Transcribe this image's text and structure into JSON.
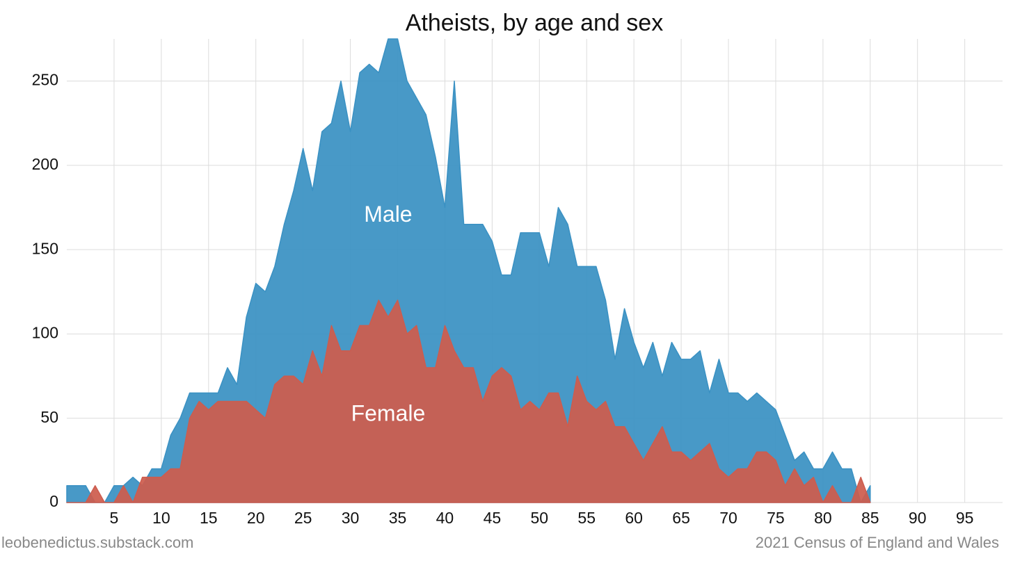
{
  "chart_data": {
    "type": "area",
    "title": "Atheists, by age and sex",
    "xlabel": "",
    "ylabel": "",
    "xlim": [
      0,
      99
    ],
    "ylim": [
      0,
      275
    ],
    "x_ticks": [
      5,
      10,
      15,
      20,
      25,
      30,
      35,
      40,
      45,
      50,
      55,
      60,
      65,
      70,
      75,
      80,
      85,
      90,
      95
    ],
    "y_ticks": [
      0,
      50,
      100,
      150,
      200,
      250
    ],
    "grid": true,
    "series": [
      {
        "name": "Male",
        "label": "Male",
        "color": "#3a91c3",
        "label_at": [
          34,
          170
        ],
        "x": [
          0,
          1,
          2,
          3,
          4,
          5,
          6,
          7,
          8,
          9,
          10,
          11,
          12,
          13,
          14,
          15,
          16,
          17,
          18,
          19,
          20,
          21,
          22,
          23,
          24,
          25,
          26,
          27,
          28,
          29,
          30,
          31,
          32,
          33,
          34,
          35,
          36,
          37,
          38,
          39,
          40,
          41,
          42,
          43,
          44,
          45,
          46,
          47,
          48,
          49,
          50,
          51,
          52,
          53,
          54,
          55,
          56,
          57,
          58,
          59,
          60,
          61,
          62,
          63,
          64,
          65,
          66,
          67,
          68,
          69,
          70,
          71,
          72,
          73,
          74,
          75,
          76,
          77,
          78,
          79,
          80,
          81,
          82,
          83,
          84,
          85
        ],
        "values": [
          10,
          10,
          10,
          0,
          0,
          10,
          10,
          15,
          10,
          20,
          20,
          40,
          50,
          65,
          65,
          65,
          65,
          80,
          70,
          110,
          130,
          125,
          140,
          165,
          185,
          210,
          185,
          220,
          225,
          250,
          220,
          255,
          260,
          255,
          275,
          275,
          250,
          240,
          230,
          205,
          175,
          250,
          165,
          165,
          165,
          155,
          135,
          135,
          160,
          160,
          160,
          140,
          175,
          165,
          140,
          140,
          140,
          120,
          85,
          115,
          95,
          80,
          95,
          75,
          95,
          85,
          85,
          90,
          65,
          85,
          65,
          65,
          60,
          65,
          60,
          55,
          40,
          25,
          30,
          20,
          20,
          30,
          20,
          20,
          0,
          10
        ]
      },
      {
        "name": "Female",
        "label": "Female",
        "color": "#cd5c4e",
        "label_at": [
          34,
          52
        ],
        "x": [
          0,
          1,
          2,
          3,
          4,
          5,
          6,
          7,
          8,
          9,
          10,
          11,
          12,
          13,
          14,
          15,
          16,
          17,
          18,
          19,
          20,
          21,
          22,
          23,
          24,
          25,
          26,
          27,
          28,
          29,
          30,
          31,
          32,
          33,
          34,
          35,
          36,
          37,
          38,
          39,
          40,
          41,
          42,
          43,
          44,
          45,
          46,
          47,
          48,
          49,
          50,
          51,
          52,
          53,
          54,
          55,
          56,
          57,
          58,
          59,
          60,
          61,
          62,
          63,
          64,
          65,
          66,
          67,
          68,
          69,
          70,
          71,
          72,
          73,
          74,
          75,
          76,
          77,
          78,
          79,
          80,
          81,
          82,
          83,
          84,
          85
        ],
        "values": [
          0,
          0,
          0,
          10,
          0,
          0,
          10,
          0,
          15,
          15,
          15,
          20,
          20,
          50,
          60,
          55,
          60,
          60,
          60,
          60,
          55,
          50,
          70,
          75,
          75,
          70,
          90,
          75,
          105,
          90,
          90,
          105,
          105,
          120,
          110,
          120,
          100,
          105,
          80,
          80,
          105,
          90,
          80,
          80,
          60,
          75,
          80,
          75,
          55,
          60,
          55,
          65,
          65,
          45,
          75,
          60,
          55,
          60,
          45,
          45,
          35,
          25,
          35,
          45,
          30,
          30,
          25,
          30,
          35,
          20,
          15,
          20,
          20,
          30,
          30,
          25,
          10,
          20,
          10,
          15,
          0,
          10,
          0,
          0,
          15,
          0
        ]
      }
    ]
  },
  "footer": {
    "source_left": "leobenedictus.substack.com",
    "source_right": "2021 Census of England and Wales"
  }
}
